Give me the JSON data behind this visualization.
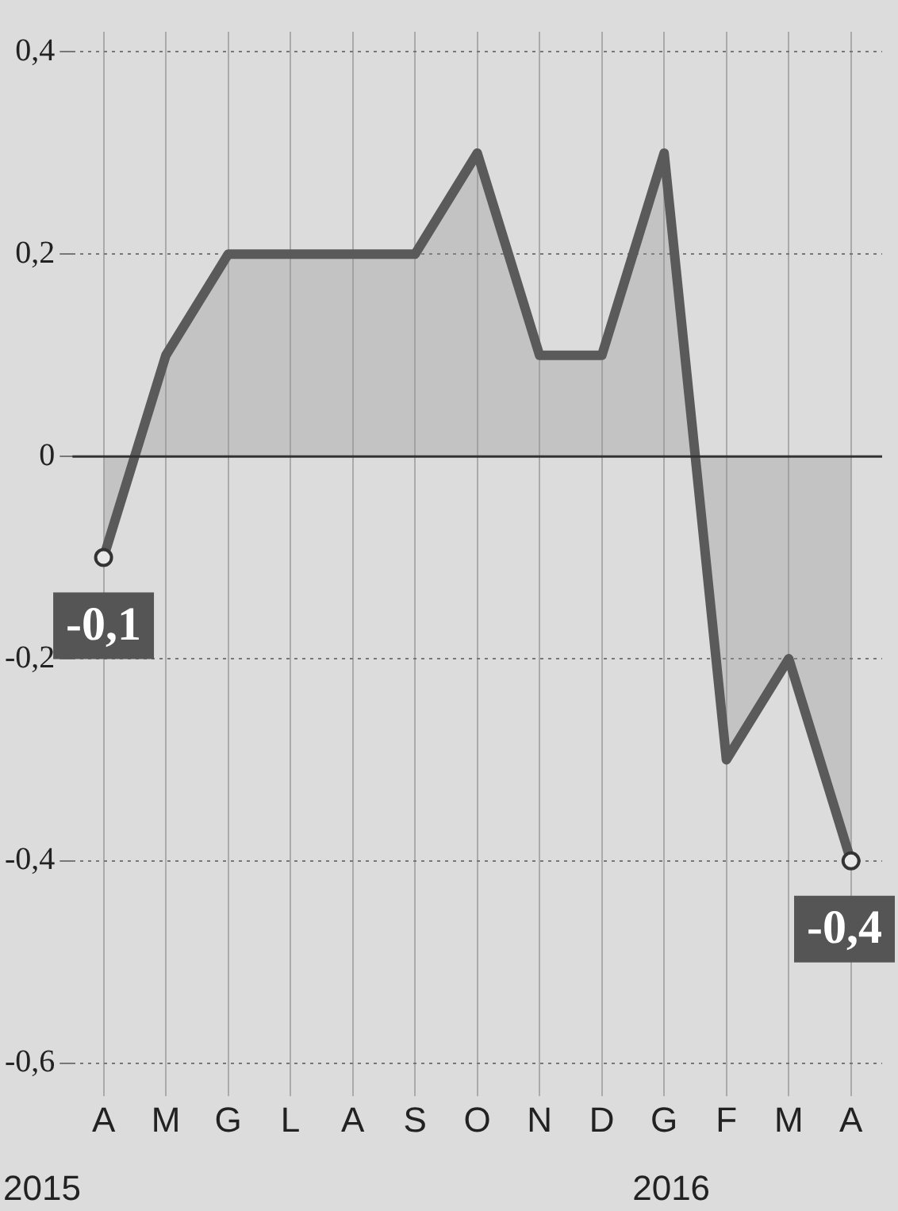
{
  "chart_data": {
    "type": "area",
    "categories": [
      "A",
      "M",
      "G",
      "L",
      "A",
      "S",
      "O",
      "N",
      "D",
      "G",
      "F",
      "M",
      "A"
    ],
    "series": [
      {
        "color": "#5a5a5a",
        "values": [
          -0.1,
          0.1,
          0.2,
          0.2,
          0.2,
          0.2,
          0.3,
          0.1,
          0.1,
          0.3,
          -0.3,
          -0.2,
          -0.4
        ],
        "value_labels": [
          "-0,1",
          null,
          null,
          null,
          null,
          null,
          null,
          null,
          null,
          null,
          null,
          null,
          "-0,4"
        ]
      }
    ],
    "ylim": [
      -0.62,
      0.42
    ],
    "yticks": [
      {
        "value": 0.4,
        "label": "0,4"
      },
      {
        "value": 0.2,
        "label": "0,2"
      },
      {
        "value": 0,
        "label": "0"
      },
      {
        "value": -0.2,
        "label": "-0,2"
      },
      {
        "value": -0.4,
        "label": "-0,4"
      },
      {
        "value": -0.6,
        "label": "-0,6"
      }
    ],
    "ref_lines": [
      {
        "axis": "y",
        "value": 0,
        "color": "#333333"
      }
    ],
    "grid": true,
    "legend": false,
    "marker": "none",
    "annotations": [
      "2015",
      "2016"
    ]
  }
}
